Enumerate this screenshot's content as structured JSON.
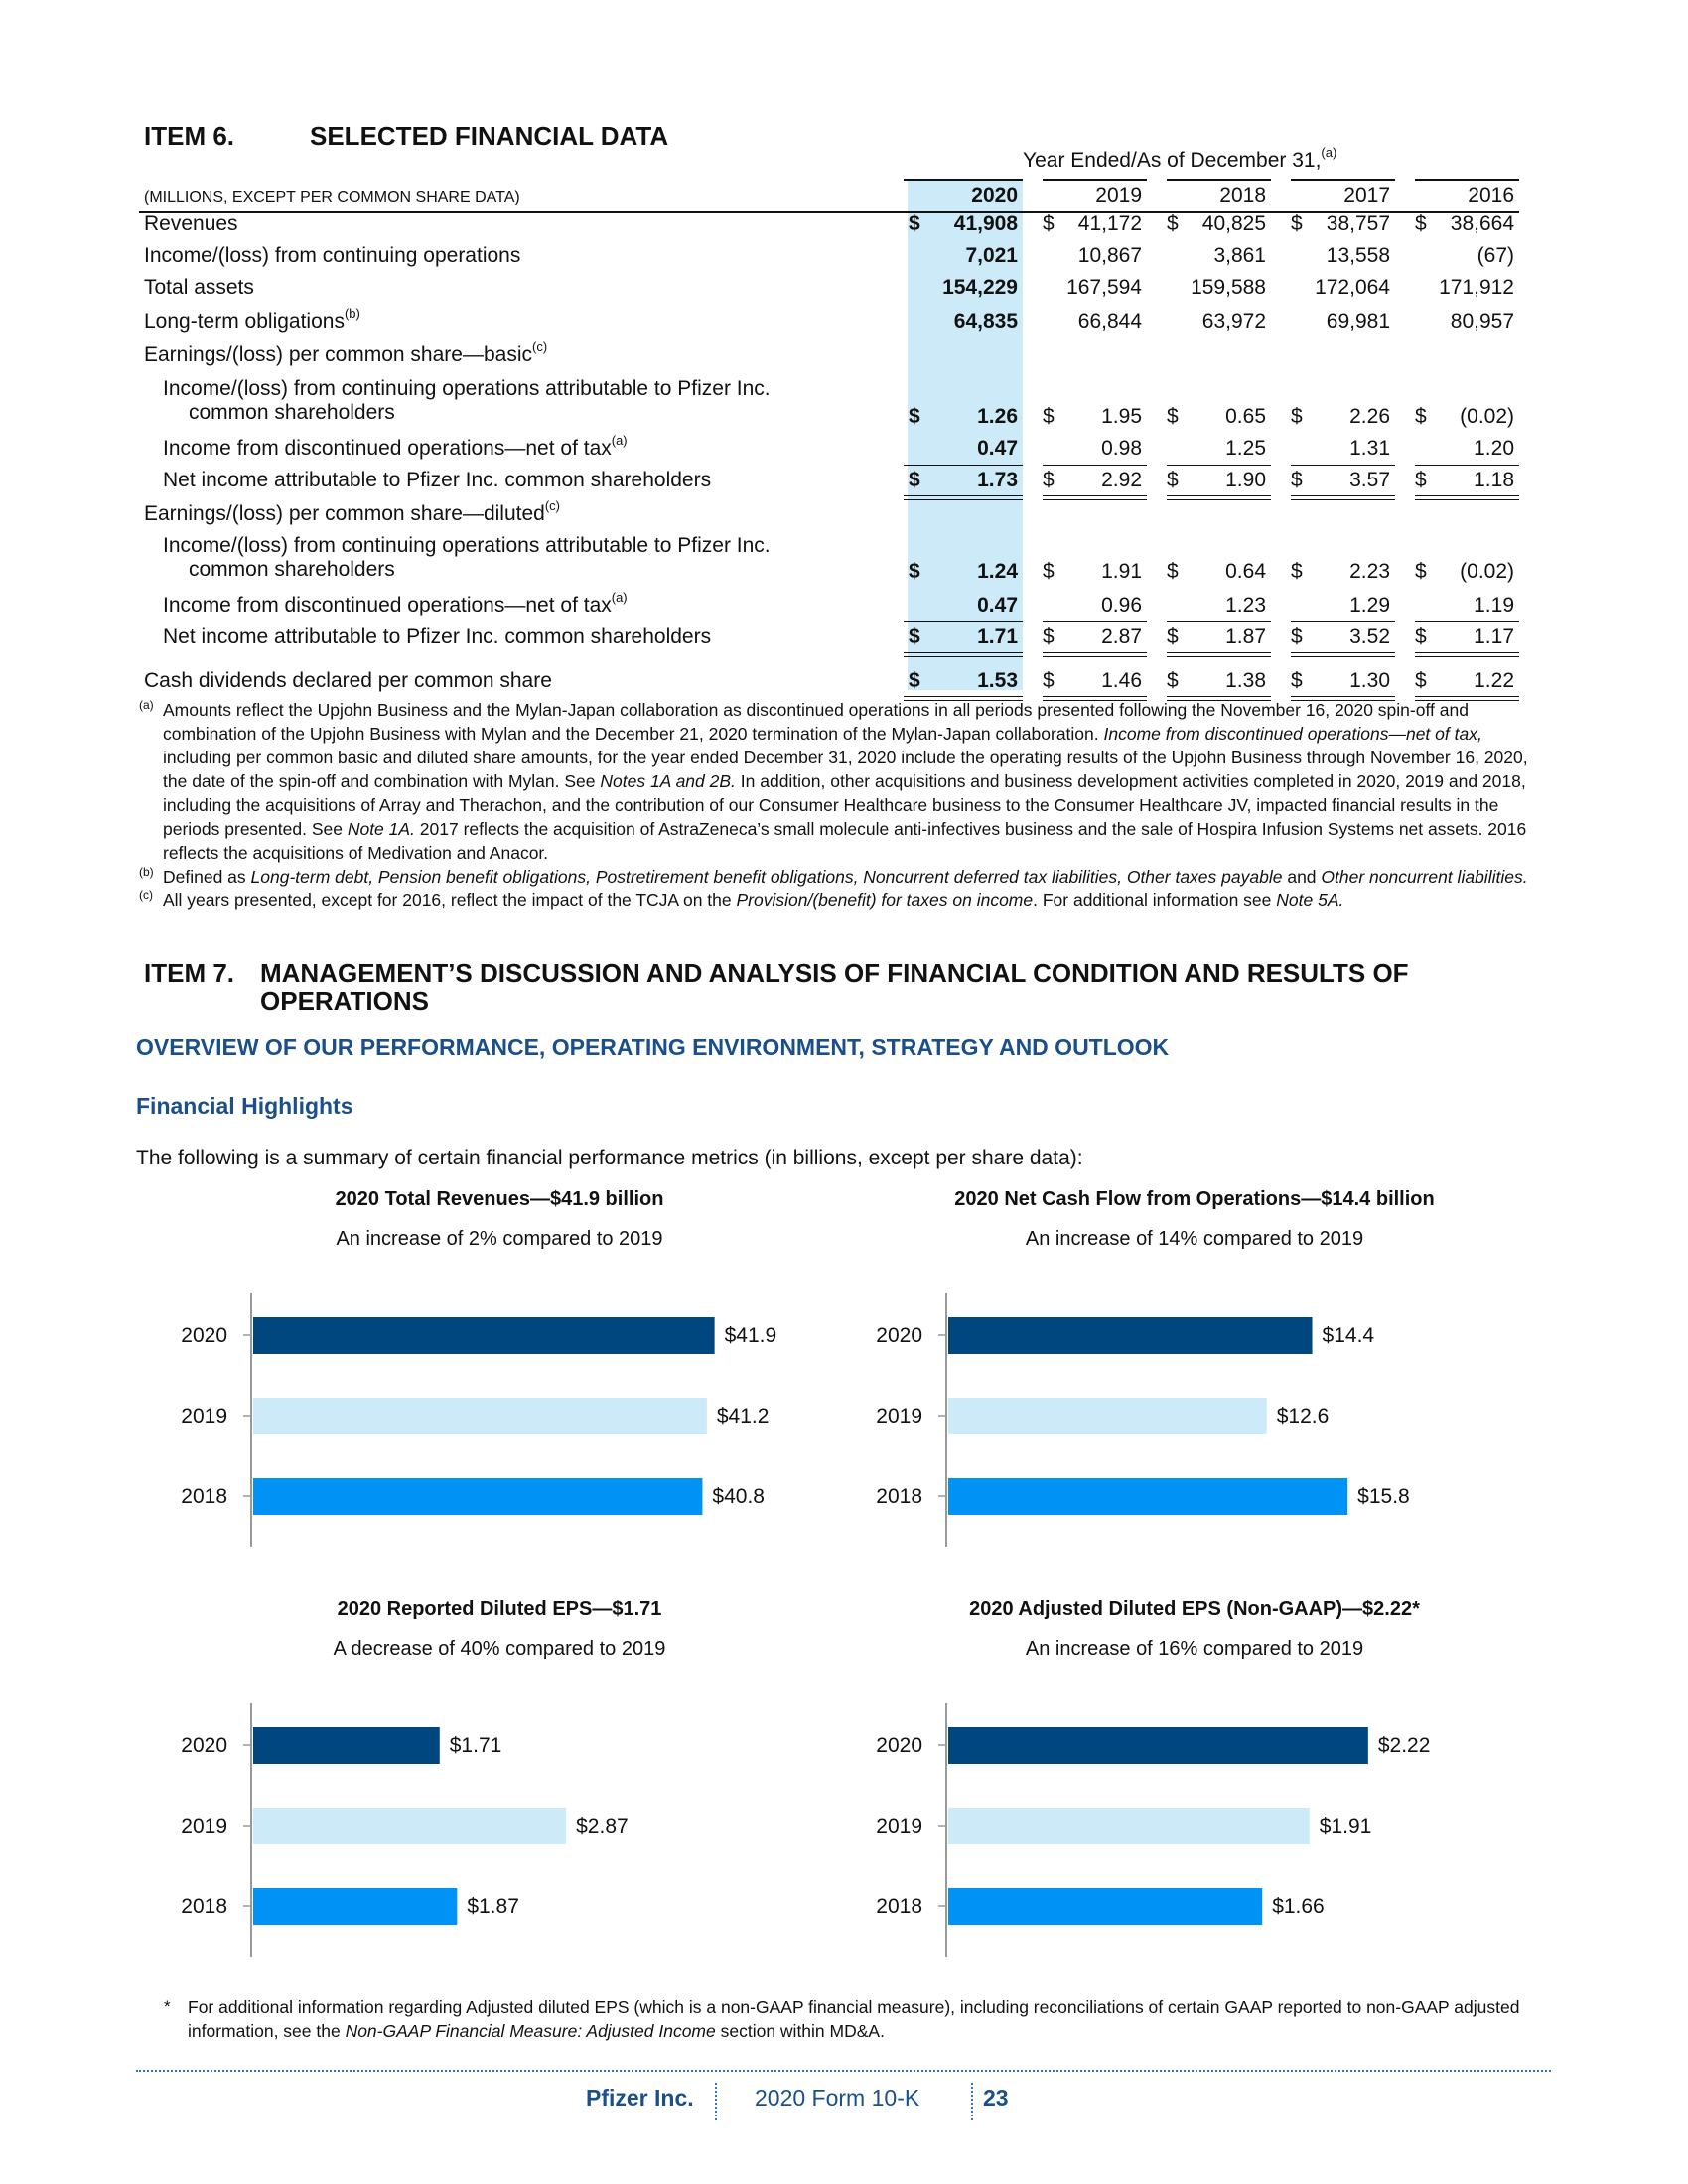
{
  "item6": {
    "number": "ITEM 6.",
    "title": "SELECTED FINANCIAL DATA"
  },
  "table": {
    "period_header": "Year Ended/As of December 31,",
    "period_header_note": "(a)",
    "units_label": "(MILLIONS, EXCEPT PER COMMON SHARE DATA)",
    "years": [
      "2020",
      "2019",
      "2018",
      "2017",
      "2016"
    ],
    "rows": [
      {
        "label": "Revenues",
        "dollar": true,
        "values": [
          "41,908",
          "41,172",
          "40,825",
          "38,757",
          "38,664"
        ]
      },
      {
        "label": "Income/(loss) from continuing operations",
        "values": [
          "7,021",
          "10,867",
          "3,861",
          "13,558",
          "(67)"
        ]
      },
      {
        "label": "Total assets",
        "values": [
          "154,229",
          "167,594",
          "159,588",
          "172,064",
          "171,912"
        ]
      },
      {
        "label": "Long-term obligations",
        "note": "(b)",
        "values": [
          "64,835",
          "66,844",
          "63,972",
          "69,981",
          "80,957"
        ]
      },
      {
        "label": "Earnings/(loss) per common share—basic",
        "note": "(c)"
      },
      {
        "label": "Income/(loss) from continuing operations attributable to Pfizer Inc.",
        "label2": "common shareholders",
        "dollar": true,
        "values": [
          "1.26",
          "1.95",
          "0.65",
          "2.26",
          "(0.02)"
        ]
      },
      {
        "label": "Income from discontinued operations—net of tax",
        "note": "(a)",
        "values": [
          "0.47",
          "0.98",
          "1.25",
          "1.31",
          "1.20"
        ]
      },
      {
        "label": "Net income attributable to Pfizer Inc. common shareholders",
        "dollar": true,
        "values": [
          "1.73",
          "2.92",
          "1.90",
          "3.57",
          "1.18"
        ]
      },
      {
        "label": "Earnings/(loss) per common share—diluted",
        "note": "(c)"
      },
      {
        "label": "Income/(loss) from continuing operations attributable to Pfizer Inc.",
        "label2": "common shareholders",
        "dollar": true,
        "values": [
          "1.24",
          "1.91",
          "0.64",
          "2.23",
          "(0.02)"
        ]
      },
      {
        "label": "Income from discontinued operations—net of tax",
        "note": "(a)",
        "values": [
          "0.47",
          "0.96",
          "1.23",
          "1.29",
          "1.19"
        ]
      },
      {
        "label": "Net income attributable to Pfizer Inc. common shareholders",
        "dollar": true,
        "values": [
          "1.71",
          "2.87",
          "1.87",
          "3.52",
          "1.17"
        ]
      },
      {
        "label": "Cash dividends declared per common share",
        "dollar": true,
        "values": [
          "1.53",
          "1.46",
          "1.38",
          "1.30",
          "1.22"
        ]
      }
    ],
    "dollar_sign": "$"
  },
  "notes": {
    "a": {
      "mark": "(a)",
      "text_1": "Amounts reflect the Upjohn Business and the Mylan-Japan collaboration as discontinued operations in all periods presented following the November 16, 2020 spin-off and combination of the Upjohn Business with Mylan and the December 21, 2020 termination of the Mylan-Japan collaboration. ",
      "italic_1": "Income from discontinued operations—net of tax,",
      "text_2": " including per common basic and diluted share amounts, for the year ended December 31, 2020 include the operating results of the Upjohn Business through November 16, 2020, the date of the spin-off and combination with Mylan. See ",
      "italic_2": "Notes 1A and 2B.",
      "text_3": " In addition, other acquisitions and business development activities completed in 2020, 2019 and 2018, including the acquisitions of Array and Therachon, and the contribution of our Consumer Healthcare business to the Consumer Healthcare JV, impacted financial results in the periods presented. See ",
      "italic_3": "Note 1A.",
      "text_4": " 2017 reflects the acquisition of AstraZeneca’s small molecule anti-infectives business and the sale of Hospira Infusion Systems net assets. 2016 reflects the acquisitions of Medivation and Anacor."
    },
    "b": {
      "mark": "(b)",
      "text_1": "Defined as ",
      "italic_1": "Long-term debt, Pension benefit obligations, Postretirement benefit obligations, Noncurrent deferred tax liabilities, Other taxes payable",
      "text_2": " and ",
      "italic_2": "Other noncurrent liabilities."
    },
    "c": {
      "mark": "(c)",
      "text_1": "All years presented, except for 2016, reflect the impact of the TCJA on the ",
      "italic_1": "Provision/(benefit) for taxes on income",
      "text_2": ". For additional information see ",
      "italic_2": "Note 5A."
    }
  },
  "item7": {
    "number": "ITEM 7.",
    "title": "MANAGEMENT’S DISCUSSION AND ANALYSIS OF FINANCIAL CONDITION AND RESULTS OF OPERATIONS",
    "overview_heading": "OVERVIEW OF OUR PERFORMANCE, OPERATING ENVIRONMENT, STRATEGY AND OUTLOOK",
    "financial_highlights": "Financial Highlights",
    "summary": "The following is a summary of certain financial performance metrics (in billions, except per share data):"
  },
  "chart_data": [
    {
      "type": "bar",
      "orientation": "horizontal",
      "title": "2020 Total Revenues—$41.9 billion",
      "subtitle": "An increase of 2% compared to 2019",
      "categories": [
        "2020",
        "2019",
        "2018"
      ],
      "values": [
        41.9,
        41.2,
        40.8
      ],
      "labels": [
        "$41.9",
        "$41.2",
        "$40.8"
      ],
      "colors": [
        "#00477f",
        "#cdeaf8",
        "#0093f5"
      ]
    },
    {
      "type": "bar",
      "orientation": "horizontal",
      "title": "2020 Net Cash Flow from Operations—$14.4 billion",
      "subtitle": "An increase of 14% compared to 2019",
      "categories": [
        "2020",
        "2019",
        "2018"
      ],
      "values": [
        14.4,
        12.6,
        15.8
      ],
      "labels": [
        "$14.4",
        "$12.6",
        "$15.8"
      ],
      "colors": [
        "#00477f",
        "#cdeaf8",
        "#0093f5"
      ]
    },
    {
      "type": "bar",
      "orientation": "horizontal",
      "title": "2020 Reported Diluted EPS—$1.71",
      "subtitle": "A decrease of 40% compared to 2019",
      "categories": [
        "2020",
        "2019",
        "2018"
      ],
      "values": [
        1.71,
        2.87,
        1.87
      ],
      "labels": [
        "$1.71",
        "$2.87",
        "$1.87"
      ],
      "colors": [
        "#00477f",
        "#cdeaf8",
        "#0093f5"
      ]
    },
    {
      "type": "bar",
      "orientation": "horizontal",
      "title": "2020 Adjusted Diluted EPS (Non-GAAP)—$2.22*",
      "subtitle": "An increase of 16% compared to 2019",
      "categories": [
        "2020",
        "2019",
        "2018"
      ],
      "values": [
        2.22,
        1.91,
        1.66
      ],
      "labels": [
        "$2.22",
        "$1.91",
        "$1.66"
      ],
      "colors": [
        "#00477f",
        "#cdeaf8",
        "#0093f5"
      ]
    }
  ],
  "star_note": {
    "mark": "*",
    "text_1": "For additional information regarding Adjusted diluted EPS (which is a non-GAAP financial measure), including reconciliations of certain GAAP reported to non-GAAP adjusted information, see the ",
    "italic_1": "Non-GAAP Financial Measure: Adjusted Income",
    "text_2": " section within MD&A."
  },
  "footer": {
    "company": "Pfizer Inc.",
    "form": "2020 Form 10-K",
    "page": "23"
  }
}
